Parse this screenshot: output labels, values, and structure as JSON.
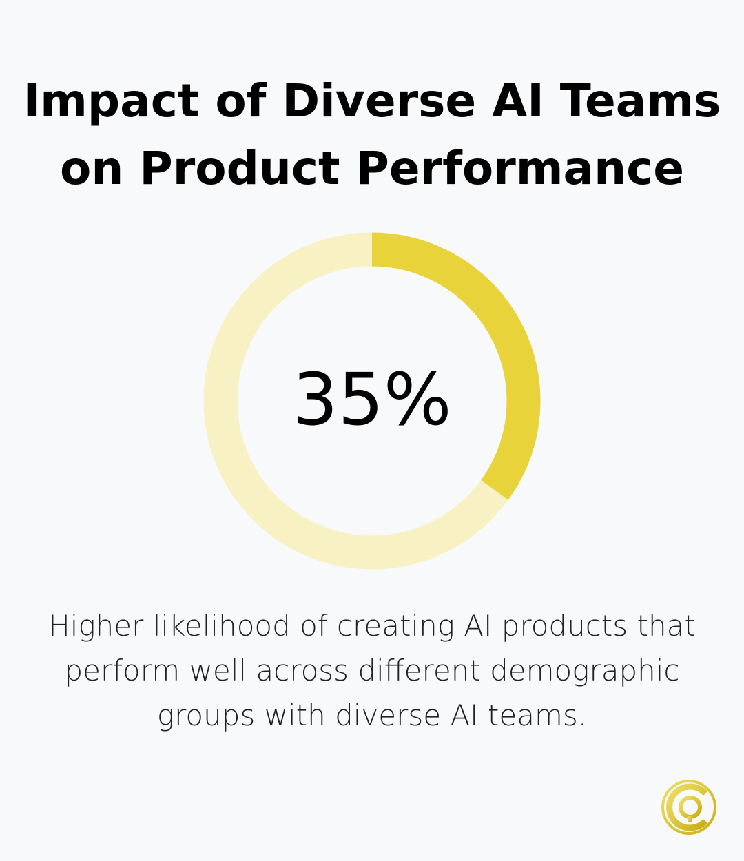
{
  "title": "Impact of Diverse AI Teams on Product Performance",
  "chart_data": {
    "type": "pie",
    "variant": "donut",
    "values": [
      35,
      65
    ],
    "value_label": "35%",
    "colors": {
      "filled": "#e8d43a",
      "track": "#f7f1c4"
    },
    "description": "Higher likelihood of creating AI products that perform well across different demographic groups with diverse AI teams."
  },
  "logo": {
    "color": "#d8c21e"
  }
}
